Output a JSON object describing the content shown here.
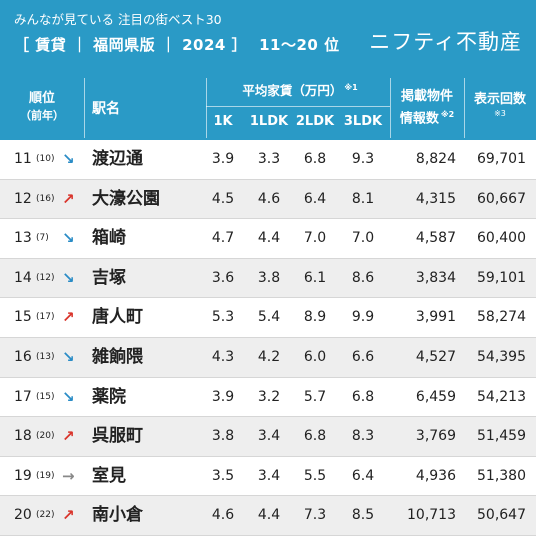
{
  "header": {
    "subtitle": "みんなが見ている 注目の街ベスト30",
    "title": "［ 賃貸 ｜ 福岡県版 ｜ 2024 ］",
    "range": "11〜20 位",
    "brand": "ニフティ不動産"
  },
  "table_header": {
    "rank": "順位",
    "rank_prev": "（前年）",
    "station": "駅名",
    "avg_rent": "平均家賃（万円）",
    "avg_rent_note": "※1",
    "cols": [
      "1K",
      "1LDK",
      "2LDK",
      "3LDK"
    ],
    "listings": "掲載物件",
    "listings2": "情報数",
    "listings_note": "※2",
    "views": "表示回数",
    "views_note": "※3"
  },
  "rows": [
    {
      "rank": "11",
      "prev": "(10)",
      "trend": "down",
      "arrow": "↘",
      "station": "渡辺通",
      "k1": "3.9",
      "ldk1": "3.3",
      "ldk2": "6.8",
      "ldk3": "9.3",
      "listings": "8,824",
      "views": "69,701"
    },
    {
      "rank": "12",
      "prev": "(16)",
      "trend": "up",
      "arrow": "↗",
      "station": "大濠公園",
      "k1": "4.5",
      "ldk1": "4.6",
      "ldk2": "6.4",
      "ldk3": "8.1",
      "listings": "4,315",
      "views": "60,667"
    },
    {
      "rank": "13",
      "prev": "(7)",
      "trend": "down",
      "arrow": "↘",
      "station": "箱崎",
      "k1": "4.7",
      "ldk1": "4.4",
      "ldk2": "7.0",
      "ldk3": "7.0",
      "listings": "4,587",
      "views": "60,400"
    },
    {
      "rank": "14",
      "prev": "(12)",
      "trend": "down",
      "arrow": "↘",
      "station": "吉塚",
      "k1": "3.6",
      "ldk1": "3.8",
      "ldk2": "6.1",
      "ldk3": "8.6",
      "listings": "3,834",
      "views": "59,101"
    },
    {
      "rank": "15",
      "prev": "(17)",
      "trend": "up",
      "arrow": "↗",
      "station": "唐人町",
      "k1": "5.3",
      "ldk1": "5.4",
      "ldk2": "8.9",
      "ldk3": "9.9",
      "listings": "3,991",
      "views": "58,274"
    },
    {
      "rank": "16",
      "prev": "(13)",
      "trend": "down",
      "arrow": "↘",
      "station": "雑餉隈",
      "k1": "4.3",
      "ldk1": "4.2",
      "ldk2": "6.0",
      "ldk3": "6.6",
      "listings": "4,527",
      "views": "54,395"
    },
    {
      "rank": "17",
      "prev": "(15)",
      "trend": "down",
      "arrow": "↘",
      "station": "薬院",
      "k1": "3.9",
      "ldk1": "3.2",
      "ldk2": "5.7",
      "ldk3": "6.8",
      "listings": "6,459",
      "views": "54,213"
    },
    {
      "rank": "18",
      "prev": "(20)",
      "trend": "up",
      "arrow": "↗",
      "station": "呉服町",
      "k1": "3.8",
      "ldk1": "3.4",
      "ldk2": "6.8",
      "ldk3": "8.3",
      "listings": "3,769",
      "views": "51,459"
    },
    {
      "rank": "19",
      "prev": "(19)",
      "trend": "flat",
      "arrow": "→",
      "station": "室見",
      "k1": "3.5",
      "ldk1": "3.4",
      "ldk2": "5.5",
      "ldk3": "6.4",
      "listings": "4,936",
      "views": "51,380"
    },
    {
      "rank": "20",
      "prev": "(22)",
      "trend": "up",
      "arrow": "↗",
      "station": "南小倉",
      "k1": "4.6",
      "ldk1": "4.4",
      "ldk2": "7.3",
      "ldk3": "8.5",
      "listings": "10,713",
      "views": "50,647"
    }
  ]
}
